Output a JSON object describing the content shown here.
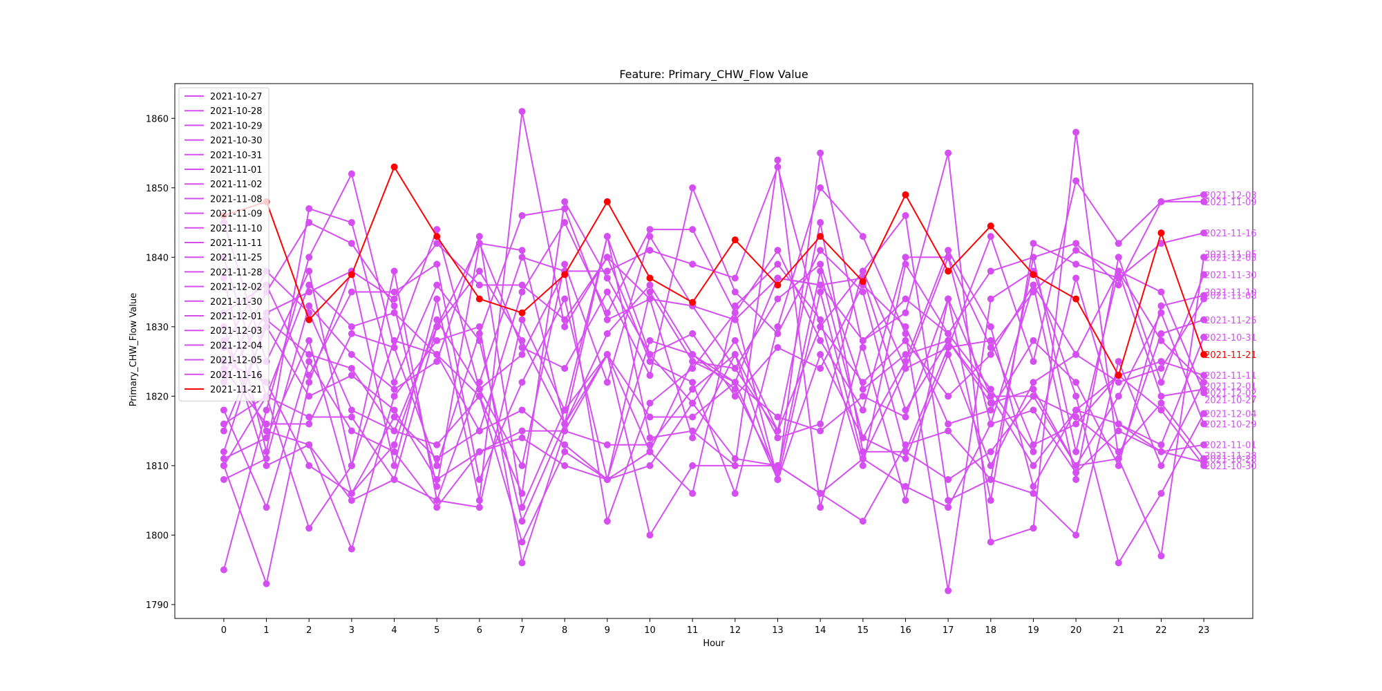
{
  "chart_data": {
    "type": "line",
    "title": "Feature: Primary_CHW_Flow Value",
    "xlabel": "Hour",
    "ylabel": "Primary_CHW_Flow Value",
    "x": [
      0,
      1,
      2,
      3,
      4,
      5,
      6,
      7,
      8,
      9,
      10,
      11,
      12,
      13,
      14,
      15,
      16,
      17,
      18,
      19,
      20,
      21,
      22,
      23
    ],
    "xlim": [
      -1.15,
      24.15
    ],
    "ylim": [
      1788,
      1865
    ],
    "y_ticks": [
      1790,
      1800,
      1810,
      1820,
      1830,
      1840,
      1850,
      1860
    ],
    "legend_position": "upper-left",
    "base_color": "#d44ef2",
    "highlight_color": "#ff0000",
    "series": [
      {
        "name": "2021-10-27",
        "color": "#d44ef2",
        "values": [
          1832,
          1836,
          1823,
          1835,
          1835,
          1839,
          1808,
          1822,
          1834,
          1808,
          1835,
          1825,
          1822,
          1808,
          1835,
          1811,
          1824,
          1840,
          1827,
          1835,
          1841,
          1838,
          1835,
          1820.5
        ]
      },
      {
        "name": "2021-10-28",
        "color": "#d44ef2",
        "values": [
          1808,
          1811,
          1833,
          1826,
          1821,
          1825,
          1843,
          1804,
          1818,
          1843,
          1826,
          1819,
          1828,
          1815,
          1845,
          1812,
          1812,
          1808,
          1812,
          1820,
          1817,
          1812,
          1819,
          1811
        ]
      },
      {
        "name": "2021-10-29",
        "color": "#d44ef2",
        "values": [
          1825,
          1822,
          1810,
          1806,
          1813,
          1831,
          1821,
          1810,
          1839,
          1822,
          1843,
          1833,
          1824,
          1834,
          1839,
          1821,
          1826,
          1828,
          1819,
          1821,
          1810,
          1820,
          1832,
          1816
        ]
      },
      {
        "name": "2021-10-30",
        "color": "#d44ef2",
        "values": [
          1811,
          1814,
          1828,
          1806,
          1817,
          1811,
          1815,
          1818,
          1813,
          1808,
          1812,
          1825,
          1824,
          1815,
          1830,
          1838,
          1824,
          1827,
          1828,
          1813,
          1816,
          1823,
          1818,
          1810
        ]
      },
      {
        "name": "2021-10-31",
        "color": "#d44ef2",
        "values": [
          1822,
          1832,
          1835,
          1838,
          1834,
          1842,
          1836,
          1836,
          1831,
          1840,
          1834,
          1833,
          1831,
          1837,
          1836,
          1828,
          1834,
          1829,
          1821,
          1812,
          1837,
          1816,
          1813,
          1828.5
        ]
      },
      {
        "name": "2021-11-01",
        "color": "#d44ef2",
        "values": [
          1815,
          1830,
          1820,
          1823,
          1818,
          1808,
          1812,
          1815,
          1815,
          1813,
          1813,
          1821,
          1826,
          1808,
          1826,
          1814,
          1825,
          1841,
          1830,
          1807,
          1818,
          1816,
          1812,
          1813
        ]
      },
      {
        "name": "2021-11-02",
        "color": "#d44ef2",
        "values": [
          1818,
          1804,
          1825,
          1815,
          1812,
          1804,
          1812,
          1814,
          1810,
          1808,
          1810,
          1819,
          1811,
          1810,
          1806,
          1811,
          1807,
          1804,
          1816,
          1818,
          1809,
          1815,
          1812,
          1810.5
        ]
      },
      {
        "name": "2021-11-08",
        "color": "#d44ef2",
        "values": [
          1824,
          1816,
          1816,
          1829,
          1827,
          1844,
          1821,
          1826,
          1838,
          1838,
          1841,
          1839,
          1837,
          1853,
          1830,
          1822,
          1828,
          1820,
          1826,
          1836,
          1826,
          1822,
          1824,
          1834
        ]
      },
      {
        "name": "2021-11-09",
        "color": "#d44ef2",
        "values": [
          1823,
          1835,
          1845,
          1842,
          1833,
          1807,
          1842,
          1827,
          1824,
          1835,
          1823,
          1850,
          1835,
          1829,
          1841,
          1835,
          1812,
          1827,
          1843,
          1825,
          1851,
          1842,
          1848,
          1848
        ]
      },
      {
        "name": "2021-11-10",
        "color": "#d44ef2",
        "values": [
          1816,
          1820,
          1801,
          1810,
          1828,
          1826,
          1820,
          1806,
          1848,
          1837,
          1826,
          1829,
          1820,
          1827,
          1824,
          1836,
          1830,
          1816,
          1818,
          1828,
          1822,
          1810,
          1833,
          1834.5
        ]
      },
      {
        "name": "2021-11-11",
        "color": "#d44ef2",
        "values": [
          1812,
          1831,
          1826,
          1824,
          1815,
          1813,
          1820,
          1799,
          1812,
          1808,
          1828,
          1826,
          1822,
          1817,
          1815,
          1820,
          1817,
          1834,
          1820,
          1810,
          1818,
          1823,
          1825,
          1823
        ]
      },
      {
        "name": "2021-11-25",
        "color": "#d44ef2",
        "values": [
          1827,
          1838,
          1832,
          1818,
          1815,
          1830,
          1838,
          1828,
          1816,
          1826,
          1817,
          1817,
          1822,
          1837,
          1836,
          1837,
          1818,
          1828,
          1820,
          1820,
          1810,
          1811,
          1829,
          1831
        ]
      },
      {
        "name": "2021-11-28",
        "color": "#d44ef2",
        "values": [
          1810,
          1820,
          1817,
          1817,
          1808,
          1830,
          1842,
          1841,
          1816,
          1829,
          1836,
          1826,
          1821,
          1809,
          1838,
          1814,
          1811,
          1826,
          1810,
          1822,
          1826,
          1838,
          1828,
          1822
        ]
      },
      {
        "name": "2021-12-02",
        "color": "#d44ef2",
        "values": [
          1830,
          1810,
          1813,
          1805,
          1808,
          1805,
          1804,
          1831,
          1818,
          1826,
          1812,
          1806,
          1833,
          1839,
          1831,
          1810,
          1839,
          1829,
          1838,
          1840,
          1812,
          1838,
          1820,
          1821
        ]
      },
      {
        "name": "2021-11-30",
        "color": "#d44ef2",
        "values": [
          1845,
          1825,
          1838,
          1810,
          1838,
          1805,
          1822,
          1840,
          1838,
          1802,
          1819,
          1824,
          1832,
          1841,
          1828,
          1818,
          1840,
          1840,
          1816,
          1836,
          1808,
          1840,
          1822,
          1837.5
        ]
      },
      {
        "name": "2021-12-01",
        "color": "#d44ef2",
        "values": [
          1828,
          1815,
          1813,
          1798,
          1820,
          1828,
          1830,
          1796,
          1815,
          1826,
          1800,
          1810,
          1810,
          1810,
          1806,
          1802,
          1813,
          1815,
          1808,
          1806,
          1800,
          1825,
          1810,
          1822
        ]
      },
      {
        "name": "2021-12-03",
        "color": "#d44ef2",
        "values": [
          1795,
          1818,
          1840,
          1852,
          1827,
          1810,
          1829,
          1846,
          1847,
          1831,
          1834,
          1814,
          1826,
          1814,
          1816,
          1838,
          1846,
          1805,
          1808,
          1840,
          1842,
          1836,
          1848,
          1849
        ]
      },
      {
        "name": "2021-12-04",
        "color": "#d44ef2",
        "values": [
          1810,
          1793,
          1822,
          1838,
          1810,
          1834,
          1805,
          1861,
          1830,
          1840,
          1825,
          1822,
          1806,
          1830,
          1850,
          1843,
          1829,
          1792,
          1834,
          1838,
          1820,
          1796,
          1806,
          1817.5
        ]
      },
      {
        "name": "2021-12-05",
        "color": "#d44ef2",
        "values": [
          1837,
          1812,
          1847,
          1845,
          1822,
          1836,
          1828,
          1802,
          1816,
          1843,
          1814,
          1815,
          1810,
          1854,
          1804,
          1828,
          1832,
          1855,
          1799,
          1801,
          1858,
          1811,
          1797,
          1840
        ]
      },
      {
        "name": "2021-11-16",
        "color": "#d44ef2",
        "values": [
          1840,
          1820,
          1836,
          1830,
          1832,
          1826,
          1815,
          1835,
          1845,
          1832,
          1844,
          1844,
          1832,
          1808,
          1855,
          1827,
          1805,
          1834,
          1805,
          1842,
          1839,
          1837,
          1842,
          1843.5
        ]
      },
      {
        "name": "2021-11-21",
        "color": "#ff0000",
        "values": [
          1846,
          1848,
          1831,
          1837.5,
          1853,
          1843,
          1834,
          1832,
          1837.5,
          1848,
          1837,
          1833.5,
          1842.5,
          1836,
          1843,
          1836.5,
          1849,
          1838,
          1844.5,
          1837.5,
          1834,
          1823,
          1843.5,
          1826
        ]
      }
    ],
    "end_labels": [
      {
        "text": "2021-12-03",
        "value": 1849,
        "color": "#d44ef2"
      },
      {
        "text": "2021-11-09",
        "value": 1848,
        "color": "#d44ef2"
      },
      {
        "text": "2021-11-16",
        "value": 1843.5,
        "color": "#d44ef2"
      },
      {
        "text": "2021-11-05",
        "value": 1840.5,
        "color": "#d44ef2"
      },
      {
        "text": "2021-12-05",
        "value": 1840,
        "color": "#d44ef2"
      },
      {
        "text": "2021-11-30",
        "value": 1837.5,
        "color": "#d44ef2"
      },
      {
        "text": "2021-11-10",
        "value": 1835,
        "color": "#d44ef2"
      },
      {
        "text": "2021-11-08",
        "value": 1834.5,
        "color": "#d44ef2"
      },
      {
        "text": "2021-11-25",
        "value": 1831,
        "color": "#d44ef2"
      },
      {
        "text": "2021-10-31",
        "value": 1828.5,
        "color": "#d44ef2"
      },
      {
        "text": "2021-11-21",
        "value": 1826,
        "color": "#ff0000"
      },
      {
        "text": "2021-11-11",
        "value": 1823,
        "color": "#d44ef2"
      },
      {
        "text": "2021-12-01",
        "value": 1821.5,
        "color": "#d44ef2"
      },
      {
        "text": "2021-12-02",
        "value": 1820.5,
        "color": "#d44ef2"
      },
      {
        "text": "2021-10-27",
        "value": 1819.5,
        "color": "#d44ef2"
      },
      {
        "text": "2021-12-04",
        "value": 1817.5,
        "color": "#d44ef2"
      },
      {
        "text": "2021-10-29",
        "value": 1816,
        "color": "#d44ef2"
      },
      {
        "text": "2021-11-01",
        "value": 1813,
        "color": "#d44ef2"
      },
      {
        "text": "2021-11-28",
        "value": 1811.5,
        "color": "#d44ef2"
      },
      {
        "text": "2021-10-28",
        "value": 1811,
        "color": "#d44ef2"
      },
      {
        "text": "2021-10-30",
        "value": 1810,
        "color": "#d44ef2"
      }
    ]
  }
}
